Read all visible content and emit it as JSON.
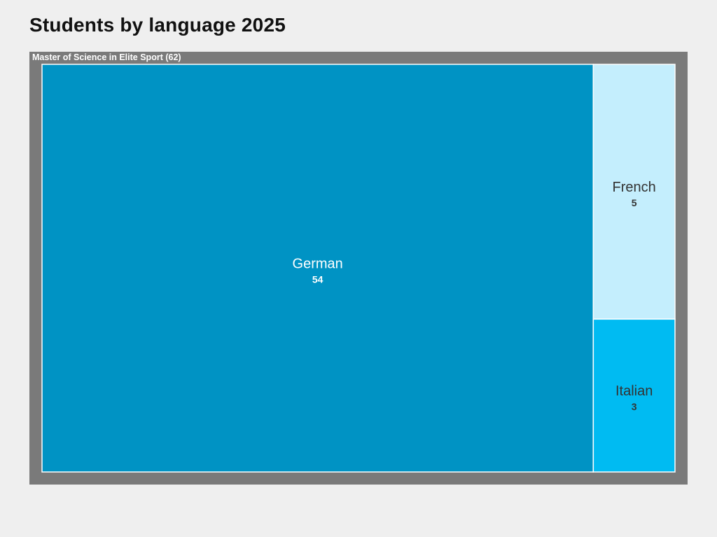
{
  "chart_data": {
    "type": "treemap",
    "title": "Students by language 2025",
    "group": {
      "label": "Master of Science in Elite Sport (62)",
      "name": "Master of Science in Elite Sport",
      "total": 62
    },
    "items": [
      {
        "name": "German",
        "value": 54,
        "color": "#0093c4",
        "text_color": "#ffffff"
      },
      {
        "name": "French",
        "value": 5,
        "color": "#c4eefd",
        "text_color": "#333333"
      },
      {
        "name": "Italian",
        "value": 3,
        "color": "#00bbf2",
        "text_color": "#333333"
      }
    ],
    "frame_color": "#7a7a7a",
    "tile_border_color": "#ffffff"
  }
}
